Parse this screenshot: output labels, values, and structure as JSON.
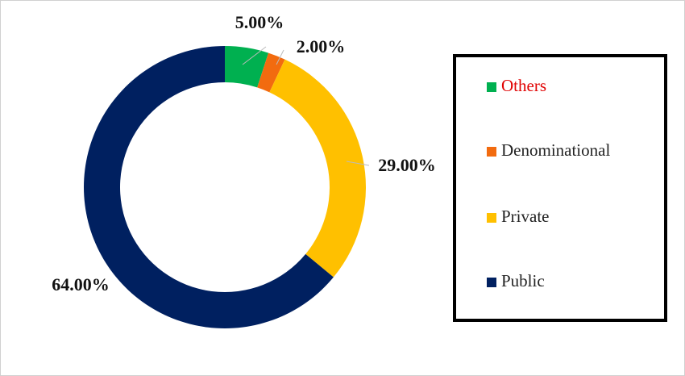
{
  "chart_data": {
    "type": "donut",
    "categories": [
      "Others",
      "Denominational",
      "Private",
      "Public"
    ],
    "values": [
      5,
      2,
      29,
      64
    ],
    "value_labels": [
      "5.00%",
      "2.00%",
      "29.00%",
      "64.00%"
    ],
    "colors": [
      "#00b050",
      "#f26b0f",
      "#ffc000",
      "#002060"
    ],
    "legend": "right"
  }
}
